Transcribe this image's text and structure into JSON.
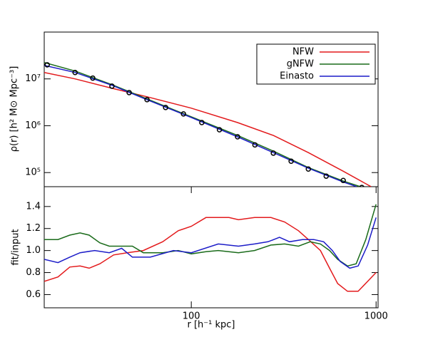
{
  "chart_data": [
    {
      "type": "line",
      "ylabel": "ρ(r) [h² M⊙ Mpc⁻³]",
      "xscale": "log",
      "yscale": "log",
      "xlim": [
        16,
        1025
      ],
      "ylim": [
        50000,
        100000000
      ],
      "yticks": [
        {
          "value": 100000,
          "label": "10⁵"
        },
        {
          "value": 1000000,
          "label": "10⁶"
        },
        {
          "value": 10000000,
          "label": "10⁷"
        }
      ],
      "legend": "upper right",
      "points": {
        "color": "#000000",
        "x": [
          16.6,
          23.5,
          29.3,
          37.2,
          46.1,
          57.6,
          72.6,
          90.7,
          114,
          142,
          178,
          221,
          278,
          347,
          430,
          537,
          664,
          837
        ],
        "values": [
          20000000,
          13700000,
          10400000,
          7000000,
          5100000,
          3600000,
          2450000,
          1790000,
          1170000,
          820000,
          580000,
          390000,
          260000,
          175000,
          119000,
          84000,
          68000,
          48000
        ]
      },
      "series": [
        {
          "name": "NFW",
          "color": "#e31a1c",
          "x": [
            16,
            23.5,
            37.2,
            57.6,
            100,
            178,
            278,
            430,
            664,
            940
          ],
          "values": [
            13700000,
            10000000,
            6300000,
            4150000,
            2370000,
            1170000,
            620000,
            267000,
            107000,
            50000
          ]
        },
        {
          "name": "gNFW",
          "color": "#1a6b1a",
          "x": [
            16,
            23.5,
            37.2,
            57.6,
            100,
            178,
            278,
            430,
            664,
            822
          ],
          "values": [
            22400000,
            14700000,
            7550000,
            3740000,
            1550000,
            620000,
            287000,
            128000,
            66000,
            50000
          ]
        },
        {
          "name": "Einasto",
          "color": "#1c1cc8",
          "x": [
            16,
            23.5,
            37.2,
            57.6,
            100,
            178,
            278,
            430,
            664,
            786
          ],
          "values": [
            19500000,
            13700000,
            7300000,
            3600000,
            1500000,
            580000,
            267000,
            124000,
            63000,
            50000
          ]
        }
      ]
    },
    {
      "type": "line",
      "xlabel": "r [h⁻¹ kpc]",
      "ylabel": "fit/input",
      "xscale": "log",
      "xlim": [
        16,
        1025
      ],
      "ylim": [
        0.48,
        1.58
      ],
      "xticks": [
        100,
        1000
      ],
      "yticks": [
        0.6,
        0.8,
        {
          "value": 1,
          "label": "1.0"
        },
        1.2,
        1.4
      ],
      "series": [
        {
          "name": "NFW",
          "color": "#e31a1c",
          "x": [
            16,
            19,
            22,
            25,
            28,
            32,
            38,
            45,
            55,
            70,
            85,
            100,
            120,
            140,
            160,
            180,
            220,
            270,
            320,
            380,
            430,
            500,
            560,
            620,
            700,
            800,
            900,
            1000
          ],
          "values": [
            0.72,
            0.76,
            0.85,
            0.86,
            0.84,
            0.88,
            0.96,
            0.98,
            1.0,
            1.08,
            1.18,
            1.22,
            1.3,
            1.3,
            1.3,
            1.28,
            1.3,
            1.3,
            1.26,
            1.18,
            1.1,
            1.0,
            0.84,
            0.7,
            0.63,
            0.63,
            0.72,
            0.8
          ]
        },
        {
          "name": "gNFW",
          "color": "#1a6b1a",
          "x": [
            16,
            19,
            22,
            25,
            28,
            32,
            36,
            42,
            48,
            55,
            70,
            85,
            100,
            120,
            140,
            180,
            220,
            270,
            320,
            380,
            440,
            500,
            560,
            620,
            700,
            780,
            880,
            1000
          ],
          "values": [
            1.1,
            1.1,
            1.14,
            1.16,
            1.14,
            1.07,
            1.04,
            1.04,
            1.04,
            0.98,
            0.98,
            1.0,
            0.97,
            0.99,
            1.0,
            0.98,
            1.0,
            1.05,
            1.06,
            1.04,
            1.08,
            1.06,
            1.0,
            0.92,
            0.86,
            0.88,
            1.1,
            1.42
          ]
        },
        {
          "name": "Einasto",
          "color": "#1c1cc8",
          "x": [
            16,
            19,
            22,
            25,
            30,
            36,
            42,
            48,
            60,
            80,
            100,
            140,
            180,
            220,
            260,
            300,
            340,
            400,
            460,
            520,
            580,
            640,
            720,
            800,
            900,
            1000
          ],
          "values": [
            0.92,
            0.89,
            0.94,
            0.98,
            1.0,
            0.98,
            1.02,
            0.94,
            0.94,
            1.0,
            0.98,
            1.06,
            1.04,
            1.06,
            1.08,
            1.12,
            1.08,
            1.1,
            1.1,
            1.08,
            1.0,
            0.9,
            0.84,
            0.86,
            1.05,
            1.3
          ]
        }
      ]
    }
  ]
}
